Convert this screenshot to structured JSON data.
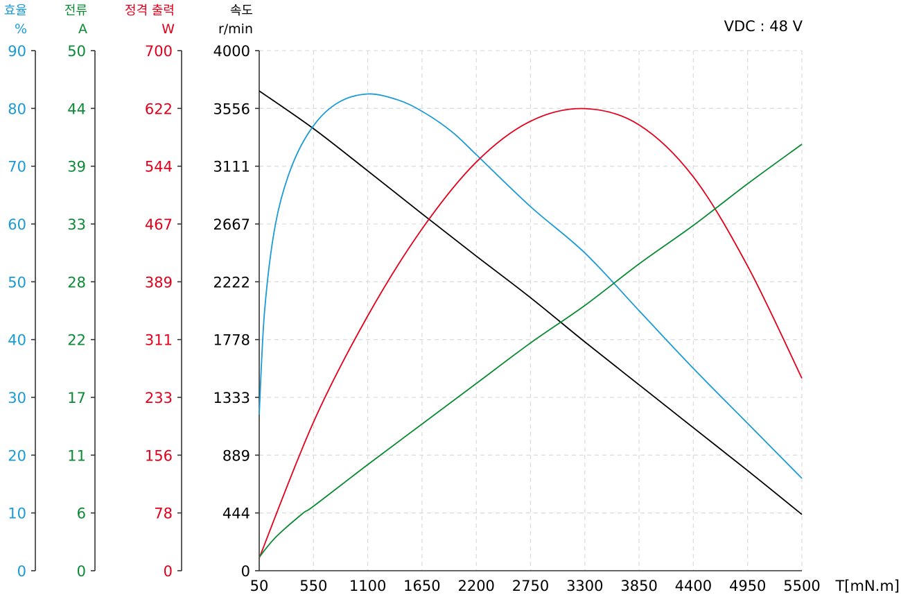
{
  "chart_data": {
    "type": "line",
    "title": "",
    "annotation": "VDC : 48 V",
    "xlabel": "T[mN.m]",
    "x_ticks": [
      50,
      550,
      1100,
      1650,
      2200,
      2750,
      3300,
      3850,
      4400,
      4950,
      5500
    ],
    "xlim": [
      50,
      5500
    ],
    "grid": true,
    "grid_style": "dashed",
    "legend": "none (axis labels colored per series)",
    "axes": [
      {
        "id": "efficiency",
        "label": "효율",
        "unit": "%",
        "color": "#1a9ad6",
        "ticks": [
          0,
          10,
          20,
          30,
          40,
          50,
          60,
          70,
          80,
          90
        ],
        "ylim": [
          0,
          90
        ]
      },
      {
        "id": "current",
        "label": "전류",
        "unit": "A",
        "color": "#0a8a34",
        "ticks": [
          0,
          6,
          11,
          17,
          22,
          28,
          33,
          39,
          44,
          50
        ],
        "ylim": [
          0,
          50
        ]
      },
      {
        "id": "power",
        "label": "정격 출력",
        "unit": "W",
        "color": "#e3001b",
        "ticks": [
          0,
          78,
          156,
          233,
          311,
          389,
          467,
          544,
          622,
          700
        ],
        "ylim": [
          0,
          700
        ]
      },
      {
        "id": "speed",
        "label": "속도",
        "unit": "r/min",
        "color": "#000000",
        "ticks": [
          0,
          444,
          889,
          1333,
          1778,
          2222,
          2667,
          3111,
          3556,
          4000
        ],
        "ylim": [
          0,
          4000
        ]
      }
    ],
    "series": [
      {
        "name": "속도",
        "axis": "speed",
        "color": "#000000",
        "x": [
          50,
          550,
          1100,
          1650,
          2200,
          2750,
          3300,
          3850,
          4400,
          4950,
          5500
        ],
        "values": [
          3690,
          3400,
          3075,
          2745,
          2420,
          2100,
          1760,
          1430,
          1100,
          770,
          433
        ]
      },
      {
        "name": "효율",
        "axis": "efficiency",
        "color": "#1a9ad6",
        "x": [
          50,
          100,
          200,
          350,
          550,
          800,
          1100,
          1400,
          1650,
          1950,
          2200,
          2750,
          3300,
          3850,
          4400,
          4950,
          5500
        ],
        "values": [
          27,
          45,
          60,
          70,
          77,
          81,
          82.5,
          81.5,
          79.5,
          76,
          72,
          63,
          55,
          45,
          35,
          25.5,
          16
        ]
      },
      {
        "name": "정격 출력",
        "axis": "power",
        "color": "#e3001b",
        "x": [
          50,
          550,
          1100,
          1650,
          2200,
          2750,
          3300,
          3850,
          4400,
          4950,
          5500
        ],
        "values": [
          17,
          200,
          343,
          460,
          550,
          605,
          622,
          600,
          530,
          410,
          259
        ]
      },
      {
        "name": "전류",
        "axis": "current",
        "color": "#0a8a34",
        "x": [
          50,
          200,
          450,
          550,
          1100,
          1650,
          2200,
          2750,
          3300,
          3850,
          4400,
          4950,
          5500
        ],
        "values": [
          1.3,
          3.2,
          5.5,
          6.2,
          10.2,
          14.1,
          18.0,
          21.9,
          25.5,
          29.5,
          33.2,
          37.2,
          41
        ]
      }
    ]
  }
}
